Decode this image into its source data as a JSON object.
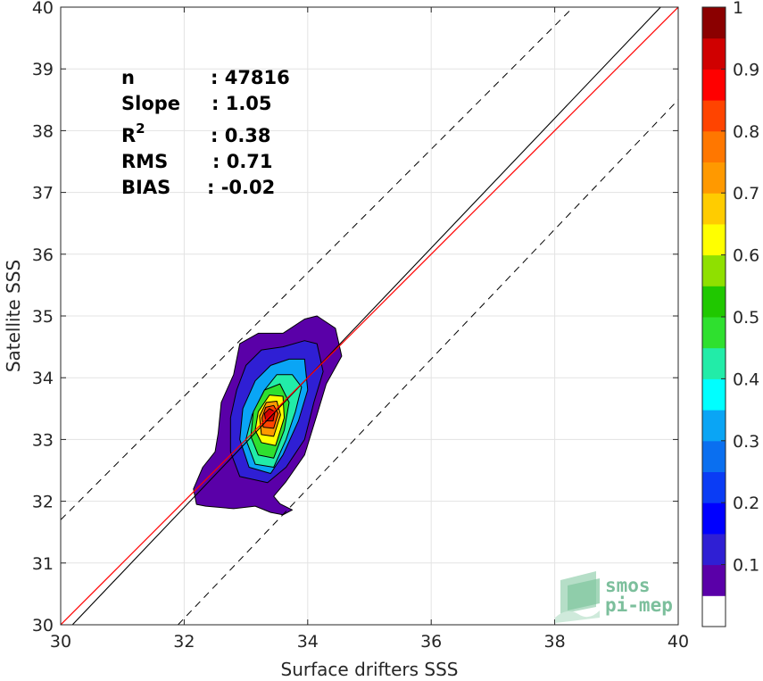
{
  "chart_data": {
    "type": "heatmap",
    "xlabel": "Surface drifters SSS",
    "ylabel": "Satellite SSS",
    "xlim": [
      30,
      40
    ],
    "ylim": [
      30,
      40
    ],
    "x_ticks": [
      "30",
      "32",
      "34",
      "36",
      "38",
      "40"
    ],
    "y_ticks": [
      "30",
      "31",
      "32",
      "33",
      "34",
      "35",
      "36",
      "37",
      "38",
      "39",
      "40"
    ],
    "grid": true,
    "stats": [
      {
        "label": "n",
        "value": ": 47816"
      },
      {
        "label": "Slope",
        "value": ": 1.05"
      },
      {
        "label": "R",
        "sup": "2",
        "value": ": 0.38"
      },
      {
        "label": "RMS",
        "value": ": 0.71"
      },
      {
        "label": "BIAS",
        "value": ": -0.02"
      }
    ],
    "reference_lines": {
      "identity": {
        "color": "#000000",
        "x": [
          30,
          40
        ],
        "y": [
          30,
          40
        ]
      },
      "regression": {
        "color": "#ff0000",
        "slope": 1.05
      }
    },
    "colorbar": {
      "range": [
        0,
        1
      ],
      "tick_labels": [
        "0.1",
        "0.2",
        "0.3",
        "0.4",
        "0.5",
        "0.6",
        "0.7",
        "0.8",
        "0.9",
        "1"
      ],
      "colors": [
        "#ffffff",
        "#5a00a8",
        "#2f1fd4",
        "#0000ff",
        "#0a3cf5",
        "#0a6ff0",
        "#0aa5f5",
        "#00ffff",
        "#22eca8",
        "#2fe02f",
        "#20c800",
        "#8fe000",
        "#ffff00",
        "#ffcc00",
        "#ff9900",
        "#ff7700",
        "#ff4400",
        "#ff0000",
        "#d00000",
        "#8b0000"
      ]
    },
    "density_levels": [
      {
        "level": 0.05,
        "color": "#5a00a8",
        "outline": [
          [
            32.35,
            31.92
          ],
          [
            32.8,
            31.88
          ],
          [
            33.15,
            31.92
          ],
          [
            33.4,
            31.82
          ],
          [
            33.6,
            31.78
          ],
          [
            33.75,
            31.86
          ],
          [
            33.55,
            31.96
          ],
          [
            33.45,
            32.08
          ],
          [
            33.65,
            32.32
          ],
          [
            33.95,
            32.75
          ],
          [
            34.15,
            33.4
          ],
          [
            34.3,
            33.9
          ],
          [
            34.55,
            34.35
          ],
          [
            34.45,
            34.8
          ],
          [
            34.15,
            35.0
          ],
          [
            33.95,
            34.95
          ],
          [
            33.6,
            34.72
          ],
          [
            33.2,
            34.72
          ],
          [
            32.9,
            34.55
          ],
          [
            32.8,
            34.05
          ],
          [
            32.6,
            33.6
          ],
          [
            32.55,
            33.1
          ],
          [
            32.5,
            32.8
          ],
          [
            32.3,
            32.55
          ],
          [
            32.15,
            32.2
          ],
          [
            32.2,
            31.95
          ]
        ]
      },
      {
        "level": 0.15,
        "color": "#2f1fd4",
        "outline": [
          [
            32.9,
            32.4
          ],
          [
            33.35,
            32.3
          ],
          [
            33.65,
            32.55
          ],
          [
            33.95,
            33.0
          ],
          [
            34.1,
            33.6
          ],
          [
            34.25,
            34.1
          ],
          [
            34.15,
            34.55
          ],
          [
            33.95,
            34.6
          ],
          [
            33.6,
            34.5
          ],
          [
            33.25,
            34.45
          ],
          [
            33.0,
            34.2
          ],
          [
            32.85,
            33.8
          ],
          [
            32.75,
            33.35
          ],
          [
            32.75,
            32.8
          ]
        ]
      },
      {
        "level": 0.3,
        "color": "#0aa5f5",
        "outline": [
          [
            33.05,
            32.55
          ],
          [
            33.4,
            32.45
          ],
          [
            33.6,
            32.75
          ],
          [
            33.85,
            33.3
          ],
          [
            34.0,
            33.8
          ],
          [
            33.95,
            34.3
          ],
          [
            33.7,
            34.3
          ],
          [
            33.4,
            34.2
          ],
          [
            33.15,
            33.95
          ],
          [
            32.95,
            33.5
          ],
          [
            32.9,
            33.0
          ]
        ]
      },
      {
        "level": 0.45,
        "color": "#22eca8",
        "outline": [
          [
            33.15,
            32.6
          ],
          [
            33.45,
            32.55
          ],
          [
            33.65,
            33.0
          ],
          [
            33.8,
            33.45
          ],
          [
            33.9,
            33.85
          ],
          [
            33.75,
            34.05
          ],
          [
            33.5,
            34.05
          ],
          [
            33.3,
            33.8
          ],
          [
            33.1,
            33.4
          ],
          [
            33.0,
            33.0
          ]
        ]
      },
      {
        "level": 0.55,
        "color": "#2fe02f",
        "outline": [
          [
            33.2,
            32.75
          ],
          [
            33.45,
            32.7
          ],
          [
            33.62,
            33.15
          ],
          [
            33.7,
            33.6
          ],
          [
            33.55,
            33.9
          ],
          [
            33.3,
            33.8
          ],
          [
            33.12,
            33.45
          ],
          [
            33.08,
            33.05
          ]
        ]
      },
      {
        "level": 0.65,
        "color": "#ffff00",
        "outline": [
          [
            33.25,
            32.95
          ],
          [
            33.48,
            32.9
          ],
          [
            33.62,
            33.35
          ],
          [
            33.6,
            33.7
          ],
          [
            33.38,
            33.72
          ],
          [
            33.2,
            33.45
          ],
          [
            33.15,
            33.15
          ]
        ]
      },
      {
        "level": 0.75,
        "color": "#ff9900",
        "outline": [
          [
            33.25,
            33.08
          ],
          [
            33.45,
            33.05
          ],
          [
            33.56,
            33.4
          ],
          [
            33.5,
            33.62
          ],
          [
            33.33,
            33.6
          ],
          [
            33.22,
            33.38
          ]
        ]
      },
      {
        "level": 0.85,
        "color": "#ff4400",
        "outline": [
          [
            33.28,
            33.2
          ],
          [
            33.45,
            33.18
          ],
          [
            33.52,
            33.42
          ],
          [
            33.45,
            33.55
          ],
          [
            33.32,
            33.52
          ],
          [
            33.26,
            33.35
          ]
        ]
      },
      {
        "level": 0.95,
        "color": "#d00000",
        "outline": [
          [
            33.32,
            33.3
          ],
          [
            33.44,
            33.3
          ],
          [
            33.47,
            33.45
          ],
          [
            33.38,
            33.5
          ],
          [
            33.3,
            33.42
          ]
        ]
      }
    ]
  },
  "watermark": {
    "line1": "smos",
    "line2": "pi-mep"
  }
}
